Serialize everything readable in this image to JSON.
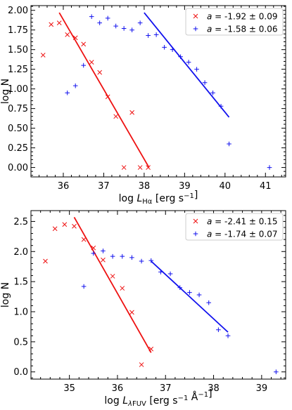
{
  "colors": {
    "red": "#ee1111",
    "blue": "#1111ee",
    "axis": "#000000",
    "legend_border": "#cccccc"
  },
  "chart_data": [
    {
      "type": "scatter",
      "xlabel": "log L_Hα [erg s⁻¹]",
      "ylabel": "log N",
      "xlim": [
        35.2,
        41.5
      ],
      "ylim": [
        -0.12,
        2.06
      ],
      "xticks": [
        36,
        37,
        38,
        39,
        40,
        41
      ],
      "yticks": [
        0.0,
        0.25,
        0.5,
        0.75,
        1.0,
        1.25,
        1.5,
        1.75,
        2.0
      ],
      "legend_position": "top-right",
      "series": [
        {
          "name": "a = -1.92 ± 0.09",
          "marker": "x",
          "color": "#ee1111",
          "points": [
            [
              35.5,
              1.43
            ],
            [
              35.7,
              1.82
            ],
            [
              35.9,
              1.84
            ],
            [
              36.1,
              1.69
            ],
            [
              36.3,
              1.65
            ],
            [
              36.5,
              1.57
            ],
            [
              36.7,
              1.34
            ],
            [
              36.9,
              1.21
            ],
            [
              37.1,
              0.9
            ],
            [
              37.3,
              0.65
            ],
            [
              37.5,
              0.0
            ],
            [
              37.7,
              0.7
            ],
            [
              37.9,
              0.0
            ],
            [
              38.1,
              0.0
            ]
          ],
          "fit": [
            [
              35.9,
              1.97
            ],
            [
              38.12,
              0.0
            ]
          ]
        },
        {
          "name": "a = -1.58 ± 0.06",
          "marker": "+",
          "color": "#1111ee",
          "points": [
            [
              36.1,
              0.95
            ],
            [
              36.3,
              1.04
            ],
            [
              36.5,
              1.3
            ],
            [
              36.7,
              1.92
            ],
            [
              36.9,
              1.84
            ],
            [
              37.1,
              1.9
            ],
            [
              37.3,
              1.8
            ],
            [
              37.5,
              1.77
            ],
            [
              37.7,
              1.75
            ],
            [
              37.9,
              1.84
            ],
            [
              38.1,
              1.68
            ],
            [
              38.3,
              1.69
            ],
            [
              38.5,
              1.53
            ],
            [
              38.7,
              1.5
            ],
            [
              38.9,
              1.41
            ],
            [
              39.1,
              1.34
            ],
            [
              39.3,
              1.25
            ],
            [
              39.5,
              1.08
            ],
            [
              39.7,
              0.95
            ],
            [
              39.9,
              0.78
            ],
            [
              40.1,
              0.3
            ],
            [
              41.1,
              0.0
            ]
          ],
          "fit": [
            [
              38.0,
              1.97
            ],
            [
              40.1,
              0.64
            ]
          ]
        }
      ]
    },
    {
      "type": "scatter",
      "xlabel": "log L_λFUV [erg s⁻¹ Å⁻¹]",
      "ylabel": "log N",
      "xlim": [
        34.2,
        39.5
      ],
      "ylim": [
        -0.12,
        2.68
      ],
      "xticks": [
        35,
        36,
        37,
        38,
        39
      ],
      "yticks": [
        0.0,
        0.5,
        1.0,
        1.5,
        2.0,
        2.5
      ],
      "legend_position": "top-right",
      "series": [
        {
          "name": "a = -2.41 ± 0.15",
          "marker": "x",
          "color": "#ee1111",
          "points": [
            [
              34.5,
              1.84
            ],
            [
              34.7,
              2.38
            ],
            [
              34.9,
              2.45
            ],
            [
              35.1,
              2.42
            ],
            [
              35.3,
              2.2
            ],
            [
              35.5,
              2.06
            ],
            [
              35.7,
              1.86
            ],
            [
              35.9,
              1.59
            ],
            [
              36.1,
              1.39
            ],
            [
              36.3,
              0.99
            ],
            [
              36.5,
              0.12
            ],
            [
              36.7,
              0.38
            ]
          ],
          "fit": [
            [
              35.1,
              2.57
            ],
            [
              36.7,
              0.32
            ]
          ]
        },
        {
          "name": "a = -1.74 ± 0.07",
          "marker": "+",
          "color": "#1111ee",
          "points": [
            [
              35.3,
              1.42
            ],
            [
              35.5,
              1.97
            ],
            [
              35.7,
              2.01
            ],
            [
              35.9,
              1.92
            ],
            [
              36.1,
              1.92
            ],
            [
              36.3,
              1.9
            ],
            [
              36.5,
              1.84
            ],
            [
              36.7,
              1.85
            ],
            [
              36.9,
              1.66
            ],
            [
              37.1,
              1.63
            ],
            [
              37.3,
              1.4
            ],
            [
              37.5,
              1.32
            ],
            [
              37.7,
              1.28
            ],
            [
              37.9,
              1.15
            ],
            [
              38.1,
              0.7
            ],
            [
              38.3,
              0.6
            ],
            [
              39.3,
              0.0
            ]
          ],
          "fit": [
            [
              36.7,
              1.84
            ],
            [
              38.3,
              0.66
            ]
          ]
        }
      ]
    }
  ]
}
